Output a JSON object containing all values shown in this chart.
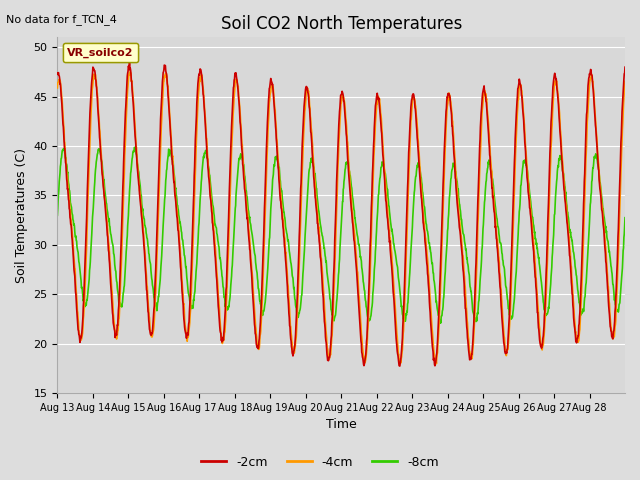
{
  "title": "Soil CO2 North Temperatures",
  "no_data_label": "No data for f_TCN_4",
  "ylabel": "Soil Temperatures (C)",
  "xlabel": "Time",
  "ylim": [
    15,
    51
  ],
  "yticks": [
    15,
    20,
    25,
    30,
    35,
    40,
    45,
    50
  ],
  "legend_label": "VR_soilco2",
  "series": {
    "cm2": {
      "label": "-2cm",
      "color": "#cc0000",
      "linewidth": 1.2
    },
    "cm4": {
      "label": "-4cm",
      "color": "#ff9900",
      "linewidth": 1.2
    },
    "cm8": {
      "label": "-8cm",
      "color": "#33cc00",
      "linewidth": 1.2
    }
  },
  "x_tick_labels": [
    "Aug 13",
    "Aug 14",
    "Aug 15",
    "Aug 16",
    "Aug 17",
    "Aug 18",
    "Aug 19",
    "Aug 20",
    "Aug 21",
    "Aug 22",
    "Aug 23",
    "Aug 24",
    "Aug 25",
    "Aug 26",
    "Aug 27",
    "Aug 28"
  ],
  "days": 16,
  "pts_per_day": 96,
  "fig_bg": "#dddddd",
  "plot_bg": "#d8d8d8"
}
